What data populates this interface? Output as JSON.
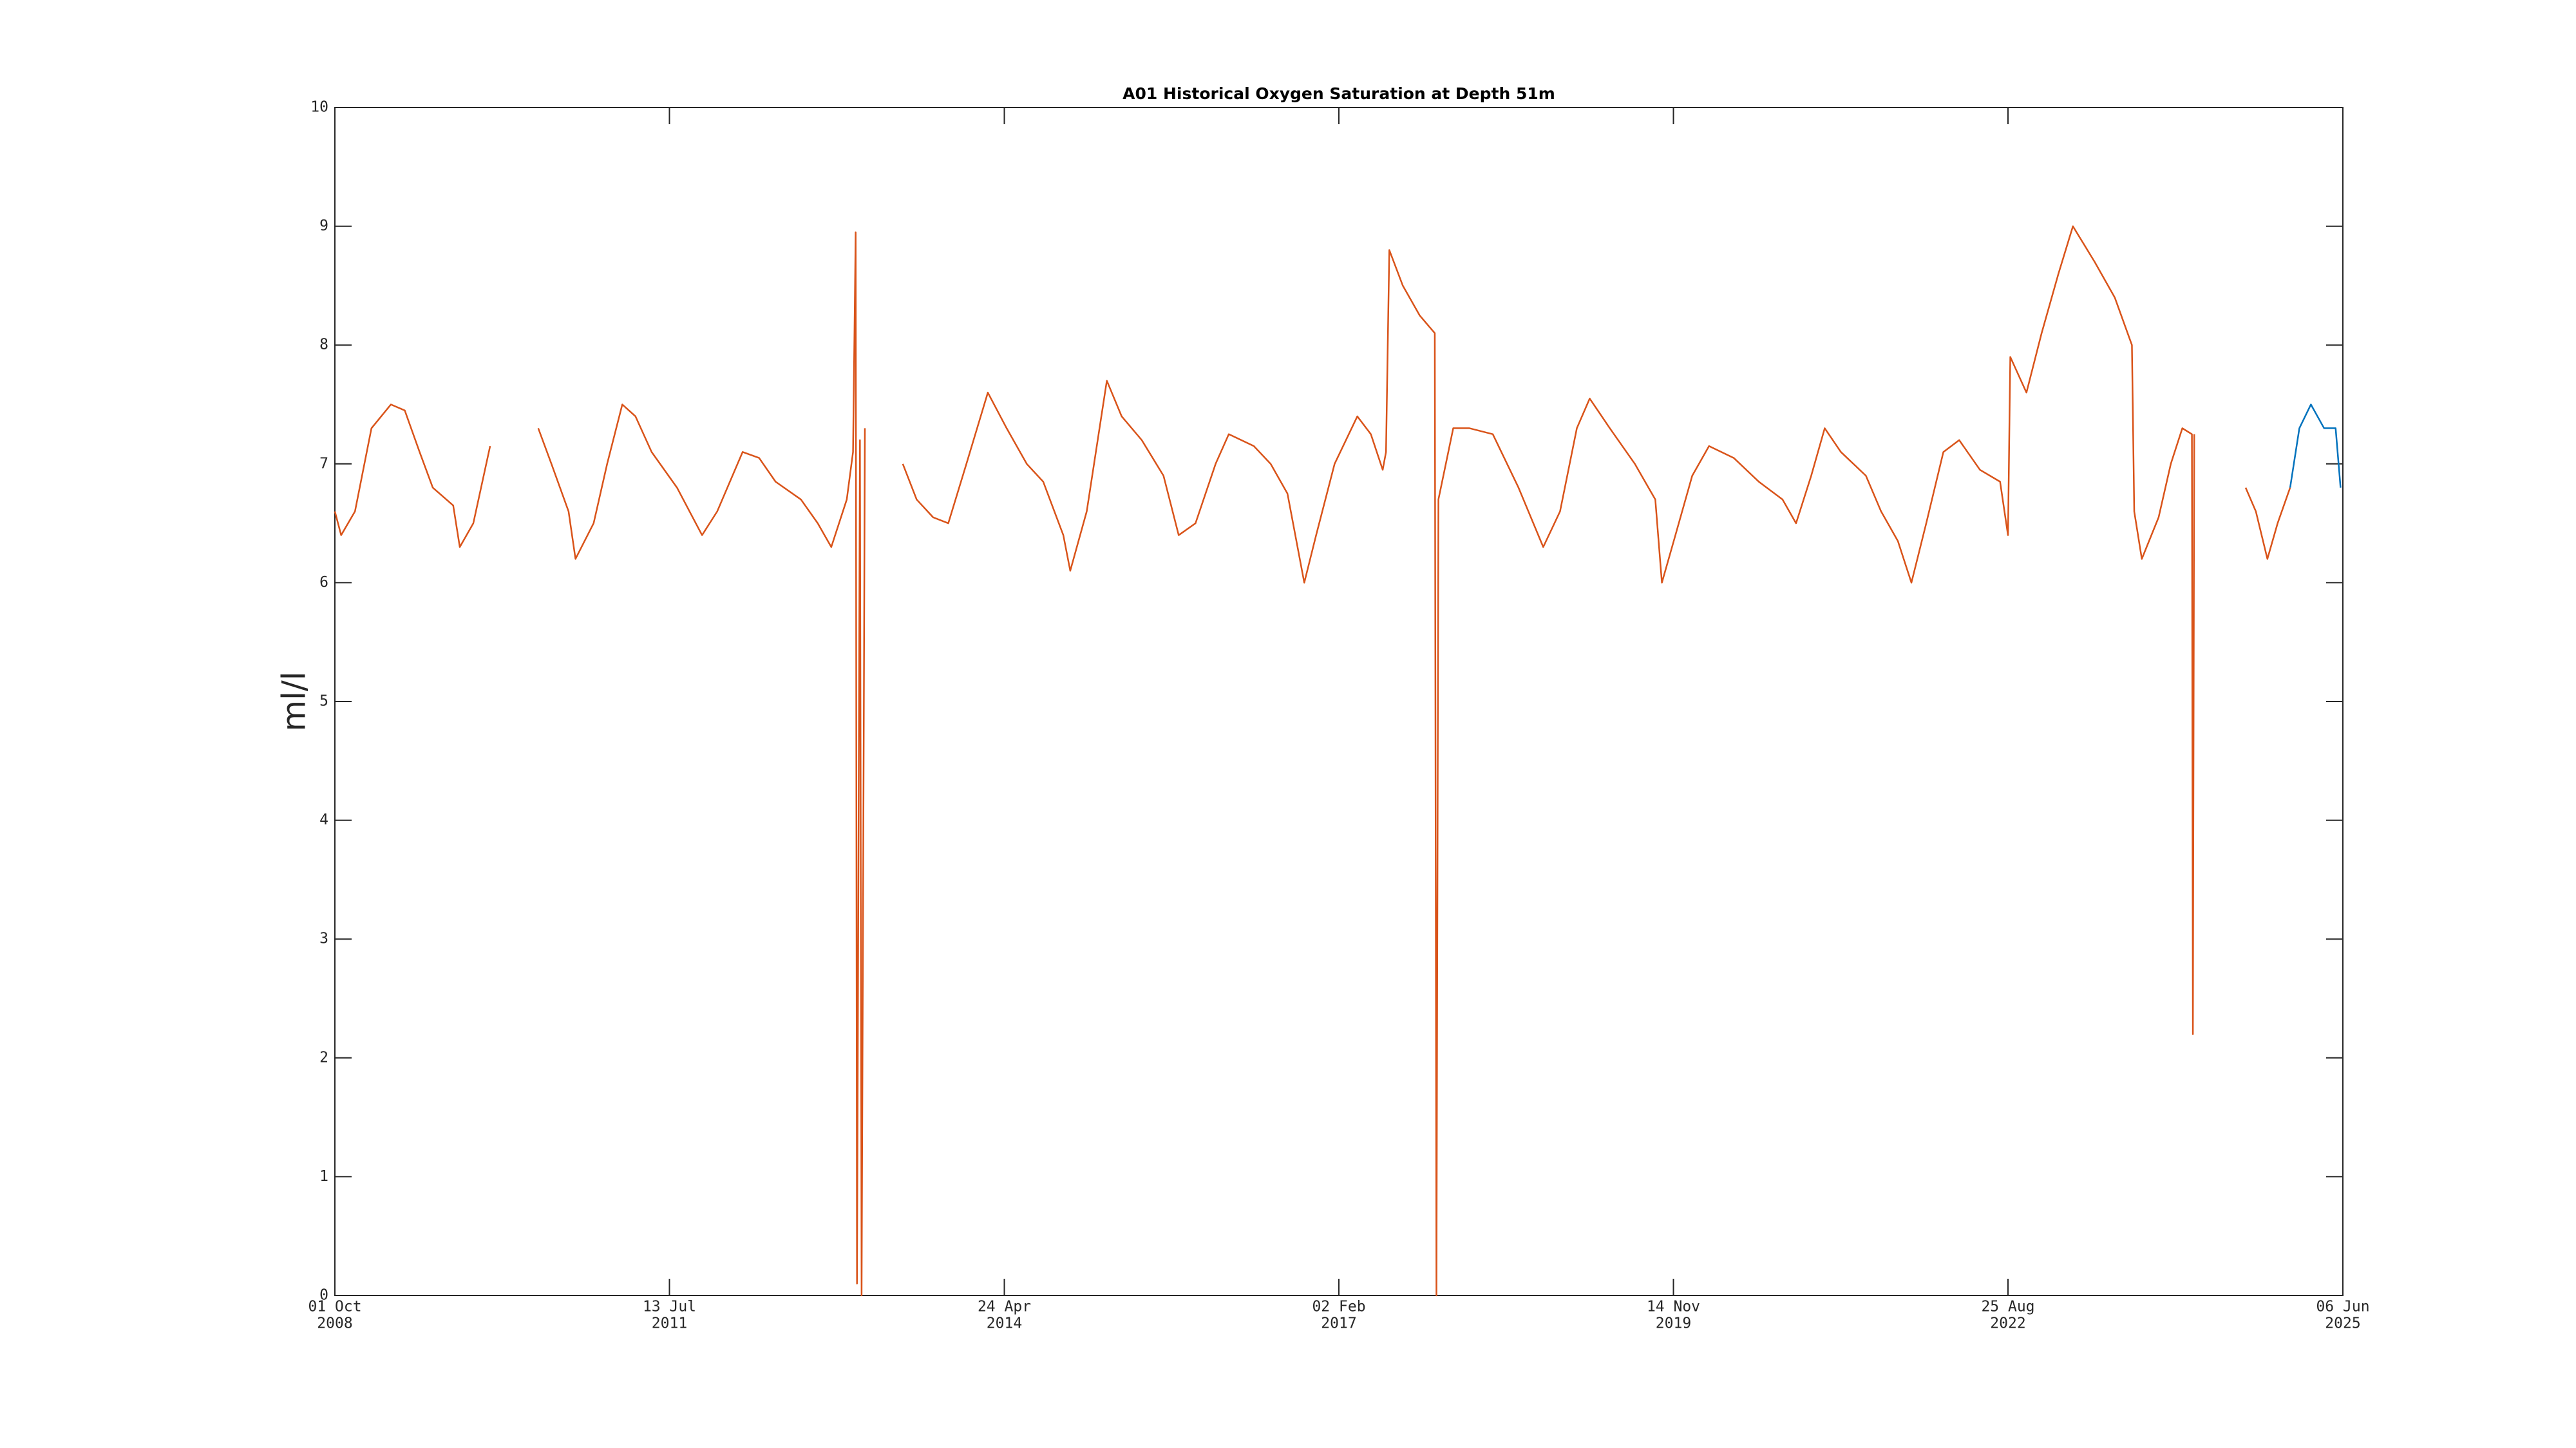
{
  "chart_data": {
    "type": "line",
    "title": "A01 Historical Oxygen Saturation at Depth 51m",
    "y_label": "ml/l",
    "ylim": [
      0,
      10
    ],
    "yticks": [
      0,
      1,
      2,
      3,
      4,
      5,
      6,
      7,
      8,
      9,
      10
    ],
    "xlim": [
      "2008-10-01",
      "2025-06-06"
    ],
    "xticks": [
      {
        "value": "2008-10-01",
        "label": [
          "01 Oct",
          "2008"
        ]
      },
      {
        "value": "2011-07-13",
        "label": [
          "13 Jul",
          "2011"
        ]
      },
      {
        "value": "2014-04-24",
        "label": [
          "24 Apr",
          "2014"
        ]
      },
      {
        "value": "2017-02-02",
        "label": [
          "02 Feb",
          "2017"
        ]
      },
      {
        "value": "2019-11-14",
        "label": [
          "14 Nov",
          "2019"
        ]
      },
      {
        "value": "2022-08-25",
        "label": [
          "25 Aug",
          "2022"
        ]
      },
      {
        "value": "2025-06-06",
        "label": [
          "06 Jun",
          "2025"
        ]
      }
    ],
    "grid": false,
    "series": [
      {
        "color": "#d95319",
        "x": [
          "2008-10-01",
          "2008-10-20",
          "2008-12-01",
          "2009-01-20",
          "2009-03-20",
          "2009-05-01",
          "2009-06-15",
          "2009-07-25",
          "2009-09-25",
          "2009-10-15",
          "2009-11-25",
          "2010-01-15",
          "2010-03-01",
          "2010-06-10",
          "2010-07-20",
          "2010-09-10",
          "2010-10-01",
          "2010-11-25",
          "2011-01-05",
          "2011-02-20",
          "2011-04-01",
          "2011-05-20",
          "2011-08-05",
          "2011-10-20",
          "2011-12-05",
          "2012-02-20",
          "2012-04-10",
          "2012-05-30",
          "2012-08-15",
          "2012-10-05",
          "2012-11-15",
          "2013-01-01",
          "2013-01-20",
          "2013-01-28",
          "2013-02-01",
          "2013-02-10",
          "2013-02-15",
          "2013-02-25",
          "2013-04-01",
          "2013-06-20",
          "2013-08-01",
          "2013-09-20",
          "2013-11-05",
          "2013-12-30",
          "2014-03-05",
          "2014-05-01",
          "2014-07-01",
          "2014-08-20",
          "2014-10-20",
          "2014-11-10",
          "2014-12-30",
          "2015-03-01",
          "2015-04-15",
          "2015-06-15",
          "2015-08-20",
          "2015-10-05",
          "2015-11-25",
          "2016-01-25",
          "2016-03-05",
          "2016-05-20",
          "2016-07-10",
          "2016-08-30",
          "2016-10-20",
          "2016-11-25",
          "2017-01-20",
          "2017-03-30",
          "2017-05-10",
          "2017-06-15",
          "2017-06-25",
          "2017-07-05",
          "2017-08-15",
          "2017-10-05",
          "2017-11-20",
          "2017-11-25",
          "2017-12-01",
          "2018-01-15",
          "2018-03-05",
          "2018-05-15",
          "2018-08-01",
          "2018-10-15",
          "2018-12-05",
          "2019-01-25",
          "2019-03-05",
          "2019-05-05",
          "2019-07-20",
          "2019-09-20",
          "2019-10-10",
          "2019-11-20",
          "2020-01-10",
          "2020-03-01",
          "2020-05-15",
          "2020-07-30",
          "2020-10-10",
          "2020-11-20",
          "2021-01-05",
          "2021-02-15",
          "2021-04-05",
          "2021-06-20",
          "2021-08-05",
          "2021-09-25",
          "2021-11-05",
          "2021-12-20",
          "2022-02-10",
          "2022-03-30",
          "2022-06-01",
          "2022-08-01",
          "2022-08-25",
          "2022-09-01",
          "2022-10-20",
          "2022-12-05",
          "2023-01-25",
          "2023-03-10",
          "2023-05-15",
          "2023-07-15",
          "2023-09-05",
          "2023-09-12",
          "2023-10-05",
          "2023-11-25",
          "2024-01-01",
          "2024-02-05",
          "2024-03-05",
          "2024-03-08",
          "2024-03-12",
          "2024-05-01",
          "2024-08-15",
          "2024-09-15",
          "2024-10-20",
          "2024-11-20",
          "2024-12-28"
        ],
        "values": [
          6.6,
          6.4,
          6.6,
          7.3,
          7.5,
          7.45,
          7.1,
          6.8,
          6.65,
          6.3,
          6.5,
          7.15,
          null,
          7.3,
          7.0,
          6.6,
          6.2,
          6.5,
          7.0,
          7.5,
          7.4,
          7.1,
          6.8,
          6.4,
          6.6,
          7.1,
          7.05,
          6.85,
          6.7,
          6.5,
          6.3,
          6.7,
          7.1,
          8.95,
          0.1,
          7.2,
          0.0,
          7.3,
          null,
          7.0,
          6.7,
          6.55,
          6.5,
          7.0,
          7.6,
          7.3,
          7.0,
          6.85,
          6.4,
          6.1,
          6.6,
          7.7,
          7.4,
          7.2,
          6.9,
          6.4,
          6.5,
          7.0,
          7.25,
          7.15,
          7.0,
          6.75,
          6.0,
          6.4,
          7.0,
          7.4,
          7.25,
          6.95,
          7.1,
          8.8,
          8.5,
          8.25,
          8.1,
          0.0,
          6.7,
          7.3,
          7.3,
          7.25,
          6.8,
          6.3,
          6.6,
          7.3,
          7.55,
          7.3,
          7.0,
          6.7,
          6.0,
          6.4,
          6.9,
          7.15,
          7.05,
          6.85,
          6.7,
          6.5,
          6.9,
          7.3,
          7.1,
          6.9,
          6.6,
          6.35,
          6.0,
          6.5,
          7.1,
          7.2,
          6.95,
          6.85,
          6.4,
          7.9,
          7.6,
          8.1,
          8.6,
          9.0,
          8.7,
          8.4,
          8.0,
          6.6,
          6.2,
          6.55,
          7.0,
          7.3,
          7.25,
          2.2,
          7.25,
          null,
          6.8,
          6.6,
          6.2,
          6.5,
          6.8
        ]
      },
      {
        "color": "#0072bd",
        "x": [
          "2024-12-28",
          "2025-01-25",
          "2025-03-01",
          "2025-04-10",
          "2025-05-15",
          "2025-05-30"
        ],
        "values": [
          6.8,
          7.3,
          7.5,
          7.3,
          7.3,
          6.8
        ]
      }
    ]
  }
}
